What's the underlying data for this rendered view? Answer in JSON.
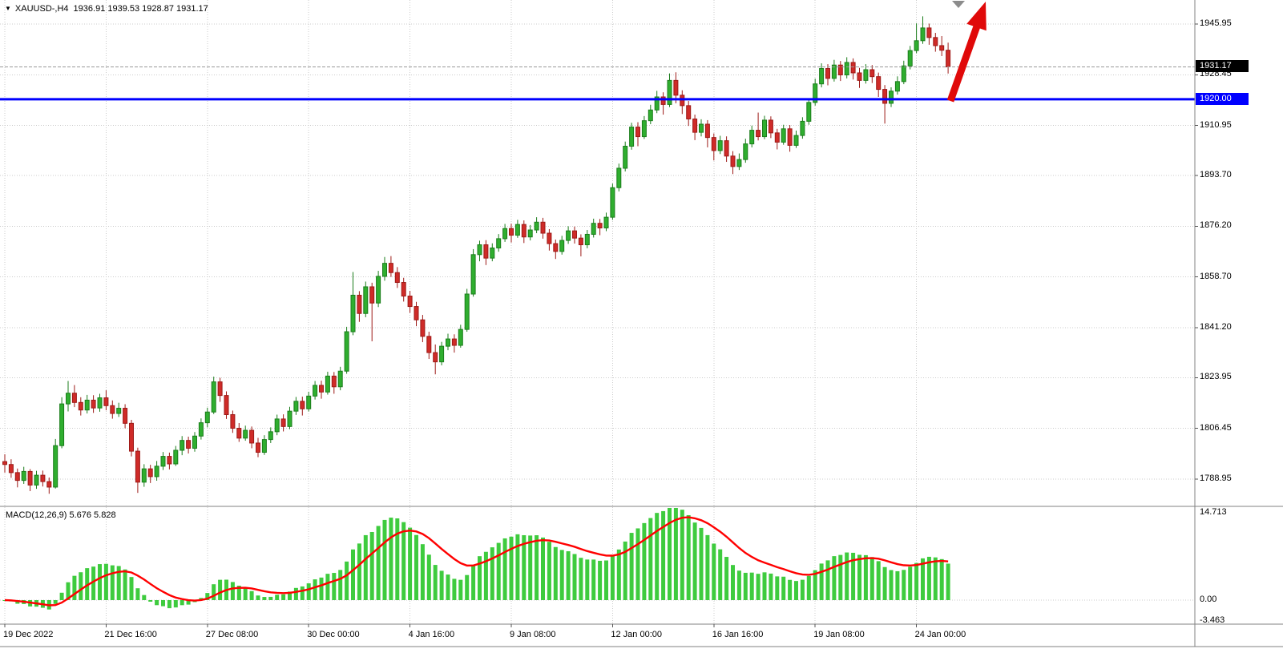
{
  "header": {
    "collapse_icon": "▼",
    "symbol_timeframe": "XAUUSD-,H4",
    "ohlc_line": "1936.91 1939.53 1928.87 1931.17"
  },
  "colors": {
    "background": "#ffffff",
    "grid": "#cbcbcb",
    "separator": "#828282",
    "bull": "#2fae2f",
    "bull_border": "#1b7d1b",
    "bear": "#cf2b28",
    "bear_border": "#9d1a17",
    "macd_hist": "#3ecb3e",
    "macd_signal": "#ff0000",
    "hline": "#0000ff",
    "arrow": "#e00909",
    "bid_line": "#999999",
    "badge_current_bg": "#000000",
    "badge_hline_bg": "#0000ff",
    "shift_marker": "#8c8c8c"
  },
  "chart_data": {
    "type": "candlestick",
    "symbol": "XAUUSD-",
    "timeframe": "H4",
    "current_ohlc": {
      "open": 1936.91,
      "high": 1939.53,
      "low": 1928.87,
      "close": 1931.17
    },
    "price_axis": {
      "labels": [
        1945.95,
        1928.45,
        1910.95,
        1893.7,
        1876.2,
        1858.7,
        1841.2,
        1823.95,
        1806.45,
        1788.95
      ],
      "current_value": 1931.17,
      "current_label": "1931.17",
      "hline_label": "1920.00"
    },
    "hline": {
      "value": 1920.0,
      "color": "#0000ff"
    },
    "trend_arrow": {
      "direction": "up",
      "color": "#e00909"
    },
    "time_labels": [
      {
        "bar": 0,
        "label": "19 Dec 2022"
      },
      {
        "bar": 16,
        "label": "21 Dec 16:00"
      },
      {
        "bar": 32,
        "label": "27 Dec 08:00"
      },
      {
        "bar": 48,
        "label": "30 Dec 00:00"
      },
      {
        "bar": 64,
        "label": "4 Jan 16:00"
      },
      {
        "bar": 80,
        "label": "9 Jan 08:00"
      },
      {
        "bar": 96,
        "label": "12 Jan 00:00"
      },
      {
        "bar": 112,
        "label": "16 Jan 16:00"
      },
      {
        "bar": 128,
        "label": "19 Jan 08:00"
      },
      {
        "bar": 144,
        "label": "24 Jan 00:00"
      }
    ],
    "macd": {
      "label": "MACD(12,26,9) 5.676 5.828",
      "params": [
        12,
        26,
        9
      ],
      "main_value": 5.676,
      "signal_value": 5.828,
      "axis_labels": [
        "14.713",
        "0.00",
        "-3.463"
      ]
    },
    "candles": [
      [
        1795.0,
        1797.5,
        1791.2,
        1794.0
      ],
      [
        1794.0,
        1795.8,
        1789.4,
        1791.2
      ],
      [
        1791.2,
        1792.6,
        1786.1,
        1788.5
      ],
      [
        1788.5,
        1793.2,
        1787.3,
        1791.6
      ],
      [
        1791.6,
        1792.4,
        1784.8,
        1786.9
      ],
      [
        1786.9,
        1791.8,
        1785.6,
        1790.3
      ],
      [
        1790.3,
        1791.9,
        1786.4,
        1788.1
      ],
      [
        1788.1,
        1789.5,
        1783.9,
        1786.2
      ],
      [
        1786.2,
        1802.8,
        1785.7,
        1800.5
      ],
      [
        1800.5,
        1817.2,
        1799.6,
        1814.9
      ],
      [
        1814.9,
        1822.8,
        1812.3,
        1818.6
      ],
      [
        1818.6,
        1821.4,
        1813.8,
        1815.4
      ],
      [
        1815.4,
        1817.2,
        1810.9,
        1812.8
      ],
      [
        1812.8,
        1818.0,
        1811.6,
        1816.2
      ],
      [
        1816.2,
        1817.9,
        1811.8,
        1813.5
      ],
      [
        1813.5,
        1818.4,
        1812.2,
        1817.0
      ],
      [
        1817.0,
        1819.6,
        1812.7,
        1814.3
      ],
      [
        1814.3,
        1816.1,
        1809.8,
        1811.6
      ],
      [
        1811.6,
        1815.3,
        1810.4,
        1813.4
      ],
      [
        1813.4,
        1814.8,
        1806.5,
        1808.2
      ],
      [
        1808.2,
        1809.4,
        1796.8,
        1798.6
      ],
      [
        1798.6,
        1799.8,
        1784.2,
        1787.9
      ],
      [
        1787.9,
        1794.1,
        1786.3,
        1792.5
      ],
      [
        1792.5,
        1793.9,
        1787.6,
        1789.8
      ],
      [
        1789.8,
        1795.2,
        1788.4,
        1793.4
      ],
      [
        1793.4,
        1798.3,
        1792.1,
        1796.8
      ],
      [
        1796.8,
        1798.1,
        1792.3,
        1794.2
      ],
      [
        1794.2,
        1800.4,
        1793.5,
        1798.9
      ],
      [
        1798.9,
        1803.8,
        1797.2,
        1802.3
      ],
      [
        1802.3,
        1803.6,
        1797.8,
        1799.6
      ],
      [
        1799.6,
        1805.2,
        1798.4,
        1803.8
      ],
      [
        1803.8,
        1809.9,
        1802.6,
        1808.4
      ],
      [
        1808.4,
        1813.6,
        1806.8,
        1812.1
      ],
      [
        1812.1,
        1824.3,
        1811.4,
        1822.5
      ],
      [
        1822.5,
        1823.9,
        1815.6,
        1817.8
      ],
      [
        1817.8,
        1819.2,
        1809.7,
        1811.2
      ],
      [
        1811.2,
        1812.6,
        1804.9,
        1806.5
      ],
      [
        1806.5,
        1808.3,
        1801.8,
        1803.1
      ],
      [
        1803.1,
        1807.4,
        1802.2,
        1805.8
      ],
      [
        1805.8,
        1807.1,
        1799.6,
        1801.4
      ],
      [
        1801.4,
        1803.2,
        1796.5,
        1798.2
      ],
      [
        1798.2,
        1804.1,
        1797.3,
        1802.6
      ],
      [
        1802.6,
        1806.8,
        1801.4,
        1805.3
      ],
      [
        1805.3,
        1811.2,
        1804.1,
        1809.7
      ],
      [
        1809.7,
        1811.3,
        1805.4,
        1807.1
      ],
      [
        1807.1,
        1813.9,
        1806.2,
        1812.4
      ],
      [
        1812.4,
        1817.3,
        1811.1,
        1815.8
      ],
      [
        1815.8,
        1817.4,
        1810.9,
        1813.2
      ],
      [
        1813.2,
        1819.1,
        1812.3,
        1817.6
      ],
      [
        1817.6,
        1822.8,
        1816.4,
        1821.3
      ],
      [
        1821.3,
        1822.9,
        1816.7,
        1819.0
      ],
      [
        1819.0,
        1826.0,
        1818.1,
        1824.5
      ],
      [
        1824.5,
        1825.9,
        1818.4,
        1820.8
      ],
      [
        1820.8,
        1827.7,
        1819.6,
        1826.2
      ],
      [
        1826.2,
        1841.5,
        1825.3,
        1839.8
      ],
      [
        1839.8,
        1860.4,
        1838.6,
        1852.4
      ],
      [
        1852.4,
        1853.8,
        1843.2,
        1846.1
      ],
      [
        1846.1,
        1857.1,
        1844.8,
        1855.3
      ],
      [
        1855.3,
        1856.7,
        1836.5,
        1849.7
      ],
      [
        1849.7,
        1860.8,
        1848.3,
        1858.9
      ],
      [
        1858.9,
        1865.6,
        1857.4,
        1863.4
      ],
      [
        1863.4,
        1865.9,
        1858.7,
        1860.2
      ],
      [
        1860.2,
        1862.1,
        1854.9,
        1856.8
      ],
      [
        1856.8,
        1858.4,
        1850.2,
        1852.1
      ],
      [
        1852.1,
        1853.9,
        1846.3,
        1848.5
      ],
      [
        1848.5,
        1850.1,
        1841.7,
        1843.9
      ],
      [
        1843.9,
        1845.6,
        1836.2,
        1838.2
      ],
      [
        1838.2,
        1839.8,
        1830.4,
        1832.6
      ],
      [
        1832.6,
        1835.4,
        1825.1,
        1829.4
      ],
      [
        1829.4,
        1836.3,
        1828.2,
        1834.8
      ],
      [
        1834.8,
        1839.1,
        1833.4,
        1837.3
      ],
      [
        1837.3,
        1838.9,
        1832.6,
        1835.1
      ],
      [
        1835.1,
        1842.2,
        1834.3,
        1840.6
      ],
      [
        1840.6,
        1854.6,
        1839.8,
        1852.8
      ],
      [
        1852.8,
        1868.3,
        1851.9,
        1866.4
      ],
      [
        1866.4,
        1871.2,
        1864.1,
        1869.8
      ],
      [
        1869.8,
        1871.4,
        1862.8,
        1865.2
      ],
      [
        1865.2,
        1870.3,
        1864.1,
        1868.7
      ],
      [
        1868.7,
        1873.5,
        1867.4,
        1871.9
      ],
      [
        1871.9,
        1877.0,
        1870.8,
        1875.4
      ],
      [
        1875.4,
        1877.1,
        1870.6,
        1873.1
      ],
      [
        1873.1,
        1878.4,
        1872.2,
        1876.8
      ],
      [
        1876.8,
        1878.2,
        1870.4,
        1872.5
      ],
      [
        1872.5,
        1876.6,
        1871.3,
        1874.9
      ],
      [
        1874.9,
        1879.3,
        1873.8,
        1877.6
      ],
      [
        1877.6,
        1879.1,
        1871.9,
        1873.8
      ],
      [
        1873.8,
        1875.2,
        1867.8,
        1870.2
      ],
      [
        1870.2,
        1871.6,
        1864.9,
        1867.5
      ],
      [
        1867.5,
        1872.9,
        1866.4,
        1871.3
      ],
      [
        1871.3,
        1876.2,
        1870.1,
        1874.6
      ],
      [
        1874.6,
        1876.1,
        1870.2,
        1872.1
      ],
      [
        1872.1,
        1873.4,
        1865.8,
        1869.8
      ],
      [
        1869.8,
        1874.9,
        1868.6,
        1873.4
      ],
      [
        1873.4,
        1878.8,
        1872.3,
        1877.2
      ],
      [
        1877.2,
        1878.7,
        1873.1,
        1875.6
      ],
      [
        1875.6,
        1880.9,
        1874.5,
        1879.3
      ],
      [
        1879.3,
        1890.9,
        1878.4,
        1889.5
      ],
      [
        1889.5,
        1897.8,
        1888.2,
        1896.2
      ],
      [
        1896.2,
        1905.4,
        1895.1,
        1903.8
      ],
      [
        1903.8,
        1911.9,
        1902.6,
        1910.4
      ],
      [
        1910.4,
        1912.1,
        1903.8,
        1907.1
      ],
      [
        1907.1,
        1914.2,
        1906.3,
        1912.6
      ],
      [
        1912.6,
        1918.1,
        1911.4,
        1916.3
      ],
      [
        1916.3,
        1922.9,
        1915.2,
        1920.8
      ],
      [
        1920.8,
        1922.4,
        1914.7,
        1918.2
      ],
      [
        1918.2,
        1928.9,
        1917.3,
        1926.5
      ],
      [
        1926.5,
        1929.3,
        1918.6,
        1921.4
      ],
      [
        1921.4,
        1923.1,
        1914.9,
        1917.8
      ],
      [
        1917.8,
        1919.4,
        1910.8,
        1913.2
      ],
      [
        1913.2,
        1914.7,
        1905.9,
        1908.6
      ],
      [
        1908.6,
        1913.1,
        1907.2,
        1911.4
      ],
      [
        1911.4,
        1912.8,
        1903.4,
        1906.8
      ],
      [
        1906.8,
        1908.2,
        1898.9,
        1902.3
      ],
      [
        1902.3,
        1907.4,
        1901.1,
        1905.7
      ],
      [
        1905.7,
        1907.2,
        1898.4,
        1900.4
      ],
      [
        1900.4,
        1902.1,
        1894.2,
        1896.8
      ],
      [
        1896.8,
        1901.3,
        1895.6,
        1899.2
      ],
      [
        1899.2,
        1906.4,
        1898.1,
        1904.6
      ],
      [
        1904.6,
        1910.9,
        1903.4,
        1909.3
      ],
      [
        1909.3,
        1915.4,
        1905.8,
        1907.1
      ],
      [
        1907.1,
        1914.3,
        1906.2,
        1912.8
      ],
      [
        1912.8,
        1914.1,
        1906.6,
        1908.4
      ],
      [
        1908.4,
        1909.8,
        1902.7,
        1905.2
      ],
      [
        1905.2,
        1911.2,
        1904.3,
        1909.8
      ],
      [
        1909.8,
        1911.1,
        1901.9,
        1904.1
      ],
      [
        1904.1,
        1909.2,
        1903.2,
        1907.5
      ],
      [
        1907.5,
        1913.8,
        1906.4,
        1912.4
      ],
      [
        1912.4,
        1920.3,
        1911.2,
        1918.9
      ],
      [
        1918.9,
        1927.1,
        1917.8,
        1925.3
      ],
      [
        1925.3,
        1932.4,
        1924.1,
        1930.6
      ],
      [
        1930.6,
        1932.1,
        1924.8,
        1927.2
      ],
      [
        1927.2,
        1933.6,
        1926.1,
        1931.8
      ],
      [
        1931.8,
        1933.2,
        1926.3,
        1928.4
      ],
      [
        1928.4,
        1934.5,
        1927.2,
        1932.7
      ],
      [
        1932.7,
        1934.1,
        1926.8,
        1929.1
      ],
      [
        1929.1,
        1930.8,
        1923.9,
        1926.5
      ],
      [
        1926.5,
        1932.1,
        1925.4,
        1930.2
      ],
      [
        1930.2,
        1931.8,
        1925.6,
        1927.8
      ],
      [
        1927.8,
        1929.2,
        1920.8,
        1923.4
      ],
      [
        1923.4,
        1924.9,
        1911.6,
        1918.6
      ],
      [
        1918.6,
        1924.1,
        1917.3,
        1922.8
      ],
      [
        1922.8,
        1927.9,
        1921.6,
        1926.1
      ],
      [
        1926.1,
        1933.3,
        1925.2,
        1931.5
      ],
      [
        1931.5,
        1938.4,
        1930.3,
        1936.8
      ],
      [
        1936.8,
        1946.2,
        1935.9,
        1940.2
      ],
      [
        1940.2,
        1948.6,
        1939.1,
        1944.6
      ],
      [
        1944.6,
        1946.1,
        1938.8,
        1941.3
      ],
      [
        1941.3,
        1942.9,
        1936.4,
        1938.5
      ],
      [
        1938.5,
        1941.8,
        1934.9,
        1936.91
      ],
      [
        1936.91,
        1939.53,
        1928.87,
        1931.17
      ]
    ]
  }
}
